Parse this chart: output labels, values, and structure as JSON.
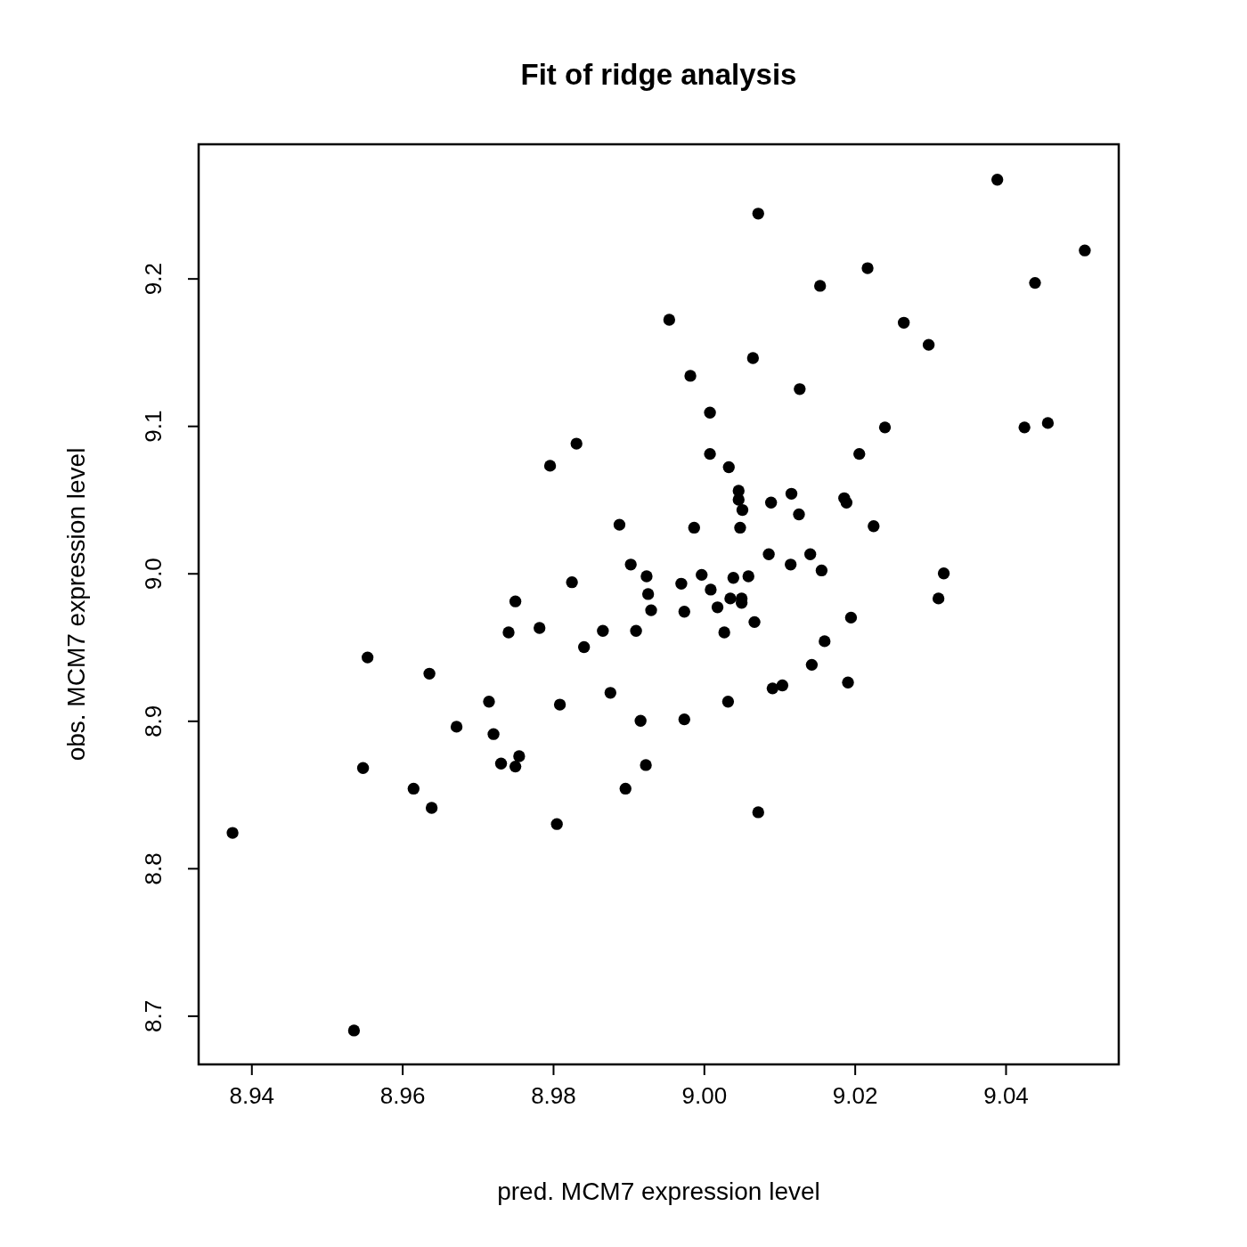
{
  "chart_data": {
    "type": "scatter",
    "title": "Fit of ridge analysis",
    "xlabel": "pred. MCM7 expression level",
    "ylabel": "obs. MCM7 expression level",
    "xlim": [
      8.933,
      9.055
    ],
    "ylim": [
      8.667,
      9.291
    ],
    "xticks": [
      8.94,
      8.96,
      8.98,
      {
        "value": 9,
        "label": "9.00"
      },
      9.02,
      9.04
    ],
    "yticks": [
      8.7,
      8.8,
      8.9,
      {
        "value": 9,
        "label": "9.0"
      },
      9.1,
      9.2
    ],
    "marker": "circle",
    "grid": false,
    "series": [
      {
        "color": "#000000",
        "x": [
          8.9375,
          8.9536,
          8.9548,
          8.9554,
          8.9615,
          8.9639,
          8.9636,
          8.9672,
          8.9715,
          8.9721,
          8.9731,
          8.975,
          8.9755,
          8.9741,
          8.975,
          8.9782,
          8.9796,
          8.9805,
          8.9809,
          8.9825,
          8.9831,
          8.9841,
          8.9866,
          8.9876,
          8.9888,
          8.9896,
          8.9903,
          8.991,
          8.9916,
          8.9923,
          8.9924,
          8.9926,
          8.993,
          8.9954,
          8.997,
          8.9974,
          8.9974,
          8.9982,
          8.9987,
          8.9997,
          9.0008,
          9.0008,
          9.0009,
          9.0018,
          9.0027,
          9.0032,
          9.0033,
          9.0035,
          9.0039,
          9.0046,
          9.0046,
          9.0048,
          9.005,
          9.005,
          9.0051,
          9.0059,
          9.0065,
          9.0067,
          9.0072,
          9.0072,
          9.0089,
          9.0086,
          9.0091,
          9.0104,
          9.0115,
          9.0116,
          9.0126,
          9.0127,
          9.0141,
          9.0143,
          9.0154,
          9.0156,
          9.016,
          9.0186,
          9.0189,
          9.0191,
          9.0195,
          9.0206,
          9.0217,
          9.0225,
          9.024,
          9.0265,
          9.0298,
          9.0311,
          9.0318,
          9.0389,
          9.0425,
          9.0439,
          9.0456,
          9.0505
        ],
        "values": [
          8.824,
          8.69,
          8.868,
          8.943,
          8.854,
          8.841,
          8.932,
          8.896,
          8.913,
          8.891,
          8.871,
          8.869,
          8.876,
          8.96,
          8.981,
          8.963,
          9.073,
          8.83,
          8.911,
          8.994,
          9.088,
          8.95,
          8.961,
          8.919,
          9.033,
          8.854,
          9.006,
          8.961,
          8.9,
          8.87,
          8.998,
          8.986,
          8.975,
          9.172,
          8.993,
          8.974,
          8.901,
          9.134,
          9.031,
          8.999,
          9.109,
          9.081,
          8.989,
          8.977,
          8.96,
          8.913,
          9.072,
          8.983,
          8.997,
          9.056,
          9.05,
          9.031,
          8.983,
          8.98,
          9.043,
          8.998,
          9.146,
          8.967,
          9.244,
          8.838,
          9.048,
          9.013,
          8.922,
          8.924,
          9.006,
          9.054,
          9.04,
          9.125,
          9.013,
          8.938,
          9.195,
          9.002,
          8.954,
          9.051,
          9.048,
          8.926,
          8.97,
          9.081,
          9.207,
          9.032,
          9.099,
          9.17,
          9.155,
          8.983,
          9.0,
          9.267,
          9.099,
          9.197,
          9.102,
          9.219
        ]
      }
    ]
  }
}
